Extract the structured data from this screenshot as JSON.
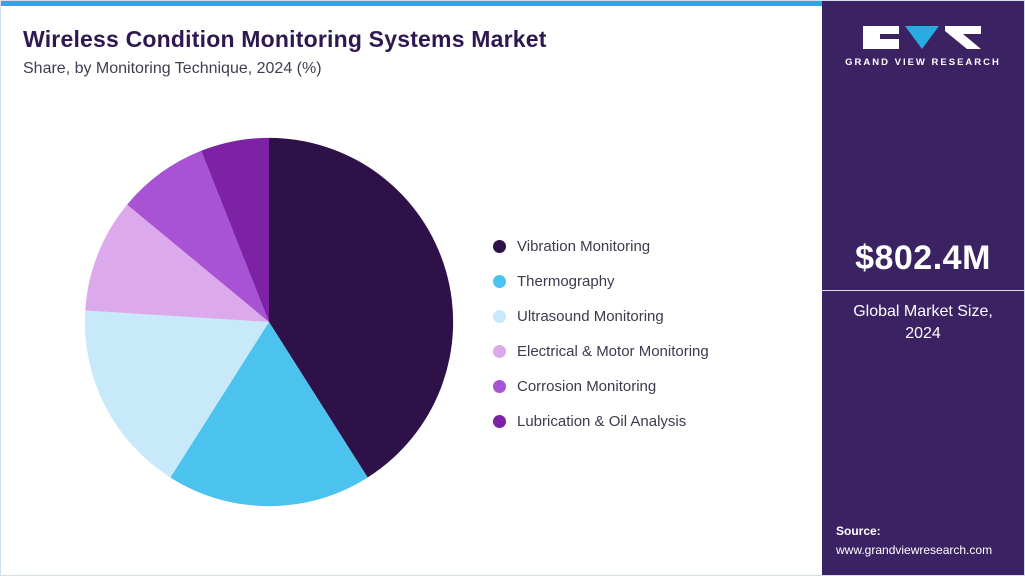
{
  "header": {
    "title": "Wireless Condition Monitoring Systems Market",
    "subtitle": "Share, by Monitoring Technique, 2024 (%)"
  },
  "chart_data": {
    "type": "pie",
    "title": "Wireless Condition Monitoring Systems Market Share, by Monitoring Technique, 2024 (%)",
    "unit": "%",
    "labels": [
      "Vibration Monitoring",
      "Thermography",
      "Ultrasound Monitoring",
      "Electrical & Motor Monitoring",
      "Corrosion Monitoring",
      "Lubrication & Oil Analysis"
    ],
    "values": [
      41,
      18,
      17,
      10,
      8,
      6
    ],
    "colors": [
      "#2d1148",
      "#4cc2ee",
      "#c8e9fa",
      "#dcaaec",
      "#a753d3",
      "#7d22a4"
    ],
    "legend_position": "right",
    "start_angle": "12 o'clock, clockwise"
  },
  "sidebar": {
    "brand_text": "GRAND VIEW RESEARCH",
    "market_size_value": "$802.4M",
    "market_size_caption": "Global Market Size, 2024",
    "source_label": "Source:",
    "source_url": "www.grandviewresearch.com"
  },
  "colors": {
    "top_accent_bar": "#29abe2",
    "sidebar_background": "#3b2263",
    "title_text": "#2f1850"
  }
}
